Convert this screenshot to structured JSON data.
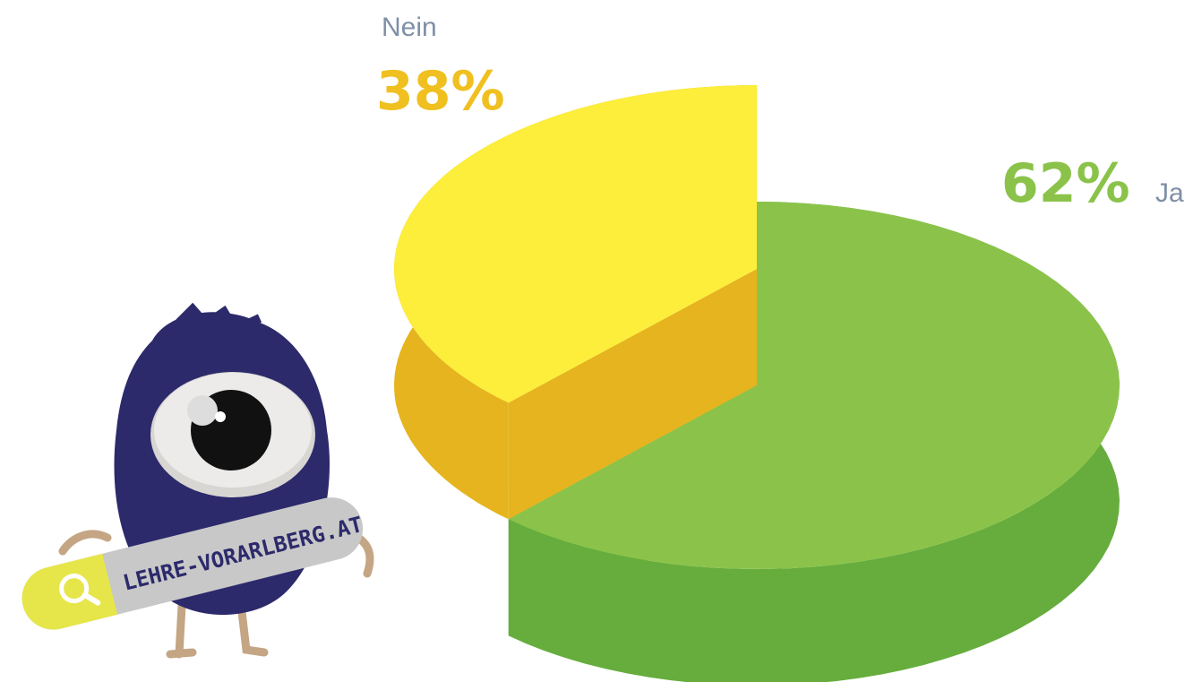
{
  "chart_data": {
    "type": "pie3d",
    "categories": [
      "Nein",
      "Ja"
    ],
    "values": [
      38,
      62
    ],
    "value_labels": [
      "38%",
      "62%"
    ],
    "colors": [
      "#fcee3a",
      "#8bc34a"
    ],
    "side_colors": [
      "#e6b41e",
      "#66ad3d"
    ],
    "exploded": [
      true,
      false
    ]
  },
  "badge": "LEHRE-VORARLBERG.AT"
}
